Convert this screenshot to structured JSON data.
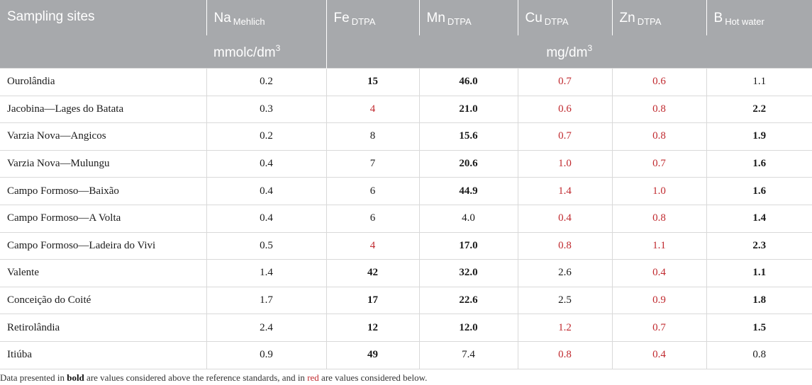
{
  "table": {
    "headers": [
      {
        "base": "Sampling sites",
        "sub": ""
      },
      {
        "base": "Na",
        "sub": "Mehlich"
      },
      {
        "base": "Fe",
        "sub": "DTPA"
      },
      {
        "base": "Mn",
        "sub": "DTPA"
      },
      {
        "base": "Cu",
        "sub": "DTPA"
      },
      {
        "base": "Zn",
        "sub": "DTPA"
      },
      {
        "base": "B",
        "sub": "Hot water"
      }
    ],
    "units": {
      "na_unit_text": "mmolc/dm",
      "na_unit_sup": "3",
      "micro_unit_text": "mg/dm",
      "micro_unit_sup": "3"
    },
    "rows": [
      {
        "site": "Ourolândia",
        "cells": [
          {
            "v": "0.2",
            "s": ""
          },
          {
            "v": "15",
            "s": "bold"
          },
          {
            "v": "46.0",
            "s": "bold"
          },
          {
            "v": "0.7",
            "s": "red"
          },
          {
            "v": "0.6",
            "s": "red"
          },
          {
            "v": "1.1",
            "s": ""
          }
        ]
      },
      {
        "site": "Jacobina—Lages do Batata",
        "cells": [
          {
            "v": "0.3",
            "s": ""
          },
          {
            "v": "4",
            "s": "red"
          },
          {
            "v": "21.0",
            "s": "bold"
          },
          {
            "v": "0.6",
            "s": "red"
          },
          {
            "v": "0.8",
            "s": "red"
          },
          {
            "v": "2.2",
            "s": "bold"
          }
        ]
      },
      {
        "site": "Varzia Nova—Angicos",
        "cells": [
          {
            "v": "0.2",
            "s": ""
          },
          {
            "v": "8",
            "s": ""
          },
          {
            "v": "15.6",
            "s": "bold"
          },
          {
            "v": "0.7",
            "s": "red"
          },
          {
            "v": "0.8",
            "s": "red"
          },
          {
            "v": "1.9",
            "s": "bold"
          }
        ]
      },
      {
        "site": "Varzia Nova—Mulungu",
        "cells": [
          {
            "v": "0.4",
            "s": ""
          },
          {
            "v": "7",
            "s": ""
          },
          {
            "v": "20.6",
            "s": "bold"
          },
          {
            "v": "1.0",
            "s": "red"
          },
          {
            "v": "0.7",
            "s": "red"
          },
          {
            "v": "1.6",
            "s": "bold"
          }
        ]
      },
      {
        "site": "Campo Formoso—Baixão",
        "cells": [
          {
            "v": "0.4",
            "s": ""
          },
          {
            "v": "6",
            "s": ""
          },
          {
            "v": "44.9",
            "s": "bold"
          },
          {
            "v": "1.4",
            "s": "red"
          },
          {
            "v": "1.0",
            "s": "red"
          },
          {
            "v": "1.6",
            "s": "bold"
          }
        ]
      },
      {
        "site": "Campo Formoso—A Volta",
        "cells": [
          {
            "v": "0.4",
            "s": ""
          },
          {
            "v": "6",
            "s": ""
          },
          {
            "v": "4.0",
            "s": ""
          },
          {
            "v": "0.4",
            "s": "red"
          },
          {
            "v": "0.8",
            "s": "red"
          },
          {
            "v": "1.4",
            "s": "bold"
          }
        ]
      },
      {
        "site": "Campo Formoso—Ladeira do Vivi",
        "cells": [
          {
            "v": "0.5",
            "s": ""
          },
          {
            "v": "4",
            "s": "red"
          },
          {
            "v": "17.0",
            "s": "bold"
          },
          {
            "v": "0.8",
            "s": "red"
          },
          {
            "v": "1.1",
            "s": "red"
          },
          {
            "v": "2.3",
            "s": "bold"
          }
        ]
      },
      {
        "site": "Valente",
        "cells": [
          {
            "v": "1.4",
            "s": ""
          },
          {
            "v": "42",
            "s": "bold"
          },
          {
            "v": "32.0",
            "s": "bold"
          },
          {
            "v": "2.6",
            "s": ""
          },
          {
            "v": "0.4",
            "s": "red"
          },
          {
            "v": "1.1",
            "s": "bold"
          }
        ]
      },
      {
        "site": "Conceição do Coité",
        "cells": [
          {
            "v": "1.7",
            "s": ""
          },
          {
            "v": "17",
            "s": "bold"
          },
          {
            "v": "22.6",
            "s": "bold"
          },
          {
            "v": "2.5",
            "s": ""
          },
          {
            "v": "0.9",
            "s": "red"
          },
          {
            "v": "1.8",
            "s": "bold"
          }
        ]
      },
      {
        "site": "Retirolândia",
        "cells": [
          {
            "v": "2.4",
            "s": ""
          },
          {
            "v": "12",
            "s": "bold"
          },
          {
            "v": "12.0",
            "s": "bold"
          },
          {
            "v": "1.2",
            "s": "red"
          },
          {
            "v": "0.7",
            "s": "red"
          },
          {
            "v": "1.5",
            "s": "bold"
          }
        ]
      },
      {
        "site": "Itiúba",
        "cells": [
          {
            "v": "0.9",
            "s": ""
          },
          {
            "v": "49",
            "s": "bold"
          },
          {
            "v": "7.4",
            "s": ""
          },
          {
            "v": "0.8",
            "s": "red"
          },
          {
            "v": "0.4",
            "s": "red"
          },
          {
            "v": "0.8",
            "s": ""
          }
        ]
      }
    ]
  },
  "footnote": {
    "part1": "Data presented in ",
    "bold_word": "bold",
    "part2": " are values considered above the reference standards, and in ",
    "red_word": "red",
    "part3": " are values considered below."
  },
  "colors": {
    "header_bg": "#a7a9ac",
    "header_text": "#ffffff",
    "below_standard": "#c0292e",
    "grid_line": "#d9d9d9"
  }
}
